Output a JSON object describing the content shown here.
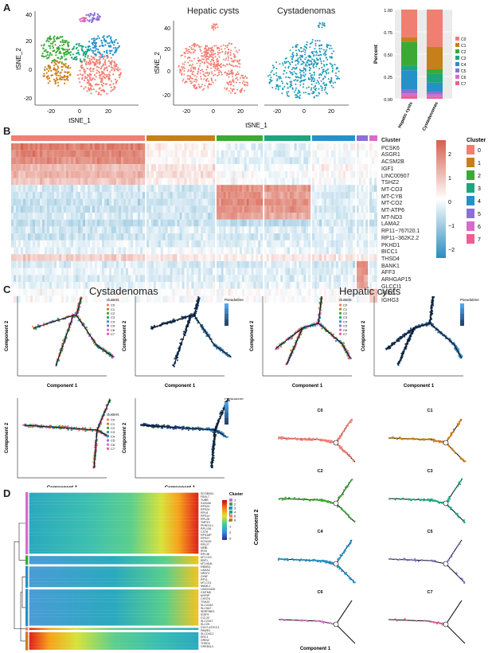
{
  "panels": {
    "A": {
      "label": "A",
      "subtitles": [
        "Hepatic cysts",
        "Cystadenomas"
      ],
      "xlabel": "tSNE_1",
      "ylabel": "tSNE_2",
      "x_ticks": [
        "-20",
        "0",
        "20"
      ],
      "y_ticks": [
        "40",
        "20",
        "0",
        "-20"
      ],
      "bar_ylabel": "Percent",
      "bar_ticks": [
        "1.00",
        "0.75",
        "0.50",
        "0.25",
        "0.00"
      ],
      "bar_categories": [
        "Hepatic cysts",
        "Cystadenomas"
      ],
      "legend_title": "",
      "legend_items": [
        "C0",
        "C1",
        "C2",
        "C3",
        "C4",
        "C5",
        "C6",
        "C7"
      ]
    },
    "B": {
      "label": "B",
      "cluster_label": "Cluster",
      "genes": [
        "PCSK6",
        "ASGR1",
        "ACSM2B",
        "IGF1",
        "LINC00907",
        "TSHZ2",
        "MT-CO3",
        "MT-CYB",
        "MT-CO2",
        "MT-ATP6",
        "MT-ND3",
        "LAMA2",
        "RP11−767I20.1",
        "RP11−362K2.2",
        "PKHD1",
        "BICC1",
        "THSD4",
        "BANK1",
        "AFF3",
        "ARHGAP15",
        "GLCCI1",
        "IGKC",
        "IGHG3"
      ],
      "colorbar_ticks": [
        "2",
        "1",
        "0",
        "−1",
        "−2"
      ],
      "cluster_legend_title": "Cluster",
      "cluster_legend": [
        "0",
        "1",
        "2",
        "3",
        "4",
        "5",
        "6",
        "7"
      ]
    },
    "C": {
      "label": "C",
      "title_left": "Cystadenomas",
      "title_right": "Hepatic cysts",
      "xlabel": "Component 1",
      "ylabel": "Component 2",
      "small_ylabel": "Component 2",
      "small_xlabel": "Component 1",
      "legend_title": "clusters",
      "legend_items": [
        "C0",
        "C1",
        "C2",
        "C3",
        "C4",
        "C5",
        "C6",
        "C7"
      ],
      "pseudo_title": "Pseudotime",
      "facets": [
        "C0",
        "C1",
        "C2",
        "C3",
        "C4",
        "C5",
        "C6",
        "C7"
      ]
    },
    "D": {
      "label": "D",
      "cluster_title": "Cluster",
      "cluster_items": [
        "1",
        "2",
        "3",
        "4",
        "5",
        "6"
      ],
      "colorbar_ticks": [
        "3",
        "2",
        "1",
        "0",
        "-1",
        "-2",
        "-3"
      ],
      "genes": [
        "SCGB3A1",
        "FBXL7",
        "TUBB",
        "S100A6",
        "RPS29",
        "RPS24",
        "RPL8",
        "RPS14",
        "RPL28",
        "TMP13",
        "PKHD1L1",
        "RPL13A",
        "CST6",
        "RPS18P",
        "RPS27",
        "KCNJ16",
        "RPL27",
        "NEBL",
        "IRX5",
        "RPL38",
        "MT-CO3",
        "EBF1",
        "MT-ND4L",
        "RBMS3",
        "LAMA2",
        "NR2F2",
        "ZXNF",
        "RP11-",
        "MT-CO1",
        "MAML2",
        "LINC01426",
        "CMTM8",
        "MYRIP",
        "CHST6",
        "TSHZ2",
        "SLC22A3",
        "SLC5A7",
        "SERPINE1",
        "IGSF9",
        "CCL20",
        "SLC22A7",
        "SLC25",
        "CH17-437K3.1",
        "PAWR1",
        "SLCO4C1",
        "ERC1",
        "GRIN2",
        "THSD4",
        "CREB3L3"
      ]
    }
  },
  "chart_data": [
    {
      "type": "scatter",
      "title": "",
      "xlabel": "tSNE_1",
      "ylabel": "tSNE_2",
      "xlim": [
        -30,
        28
      ],
      "ylim": [
        -28,
        45
      ],
      "series": [
        {
          "name": "C0",
          "color": "#f07f72"
        },
        {
          "name": "C1",
          "color": "#c77f1a"
        },
        {
          "name": "C2",
          "color": "#3aaa35"
        },
        {
          "name": "C3",
          "color": "#1ea57e"
        },
        {
          "name": "C4",
          "color": "#2591c9"
        },
        {
          "name": "C5",
          "color": "#8c6fd8"
        },
        {
          "name": "C6",
          "color": "#d86bc8"
        },
        {
          "name": "C7",
          "color": "#ec5f96"
        }
      ]
    },
    {
      "type": "bar",
      "title": "",
      "categories": [
        "Hepatic cysts",
        "Cystadenomas"
      ],
      "ylabel": "Percent",
      "ylim": [
        0,
        1
      ],
      "series": [
        {
          "name": "C0",
          "values": [
            0.31,
            0.42
          ],
          "color": "#f07f72"
        },
        {
          "name": "C1",
          "values": [
            0.05,
            0.25
          ],
          "color": "#c77f1a"
        },
        {
          "name": "C2",
          "values": [
            0.27,
            0.05
          ],
          "color": "#3aaa35"
        },
        {
          "name": "C3",
          "values": [
            0.05,
            0.1
          ],
          "color": "#1ea57e"
        },
        {
          "name": "C4",
          "values": [
            0.22,
            0.1
          ],
          "color": "#2591c9"
        },
        {
          "name": "C5",
          "values": [
            0.04,
            0.03
          ],
          "color": "#8c6fd8"
        },
        {
          "name": "C6",
          "values": [
            0.03,
            0.03
          ],
          "color": "#d86bc8"
        },
        {
          "name": "C7",
          "values": [
            0.03,
            0.02
          ],
          "color": "#ec5f96"
        }
      ]
    }
  ],
  "colors": {
    "clusters": [
      "#f07f72",
      "#c77f1a",
      "#3aaa35",
      "#1ea57e",
      "#2591c9",
      "#8c6fd8",
      "#d86bc8",
      "#ec5f96"
    ],
    "heat_low": "#2b8cbe",
    "heat_mid": "#ffffff",
    "heat_high": "#d6604d",
    "hepatic": "#f07f72",
    "cystadenoma": "#1997b7"
  }
}
